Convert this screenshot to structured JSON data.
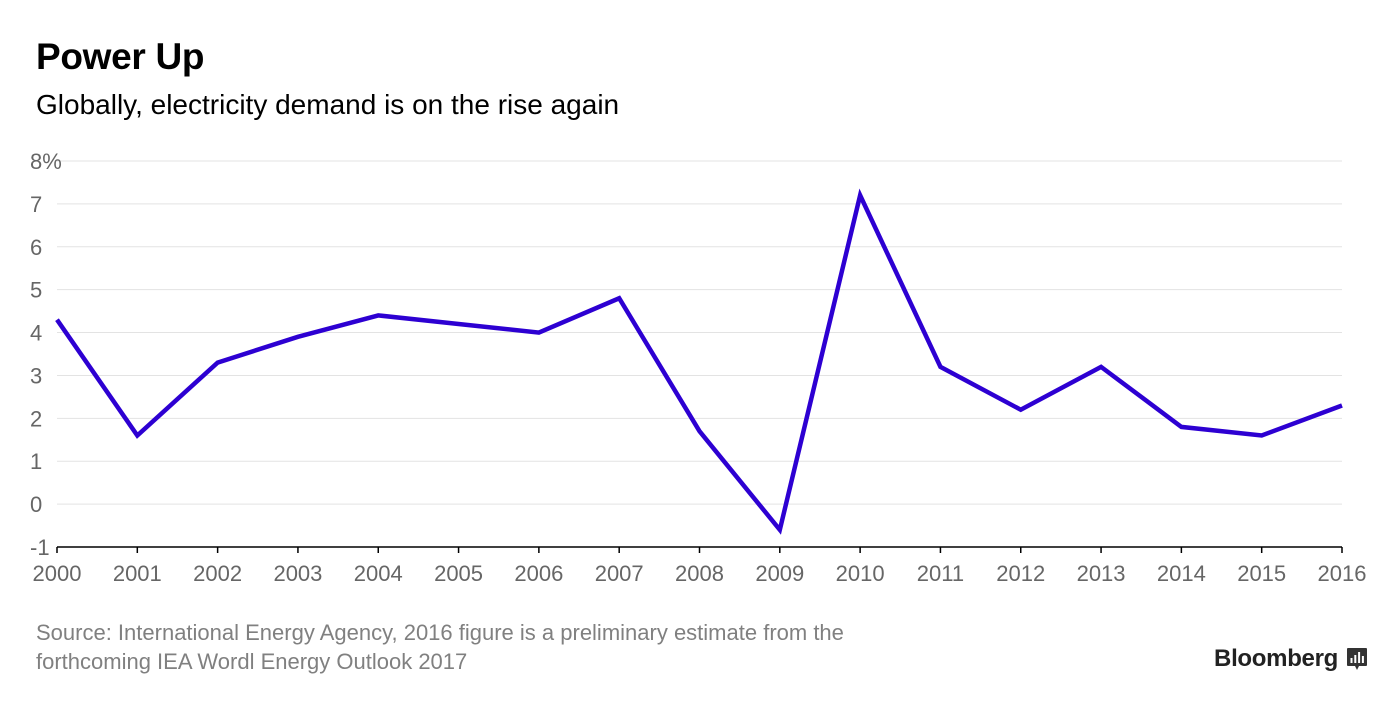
{
  "header": {
    "title": "Power Up",
    "subtitle": "Globally, electricity demand is on the rise again"
  },
  "footer": {
    "source_line1": "Source: International Energy Agency, 2016 figure is a preliminary estimate from the",
    "source_line2": "forthcoming IEA Wordl Energy Outlook 2017",
    "brand": "Bloomberg"
  },
  "colors": {
    "line": "#2d00d2",
    "grid": "#e3e3e3",
    "axis": "#000000",
    "tick_text": "#666666"
  },
  "chart_data": {
    "type": "line",
    "title": "Power Up",
    "subtitle": "Globally, electricity demand is on the rise again",
    "xlabel": "",
    "ylabel": "",
    "x": [
      "2000",
      "2001",
      "2002",
      "2003",
      "2004",
      "2005",
      "2006",
      "2007",
      "2008",
      "2009",
      "2010",
      "2011",
      "2012",
      "2013",
      "2014",
      "2015",
      "2016"
    ],
    "series": [
      {
        "values": [
          4.3,
          1.6,
          3.3,
          3.9,
          4.4,
          4.2,
          4.0,
          4.8,
          1.7,
          -0.6,
          7.2,
          3.2,
          2.2,
          3.2,
          1.8,
          1.6,
          2.3
        ]
      }
    ],
    "ylim": [
      -1,
      8
    ],
    "yticks": [
      -1,
      0,
      1,
      2,
      3,
      4,
      5,
      6,
      7,
      8
    ],
    "ytick_labels": [
      "-1",
      "0",
      "1",
      "2",
      "3",
      "4",
      "5",
      "6",
      "7",
      "8%"
    ],
    "grid": true,
    "legend": "none"
  }
}
